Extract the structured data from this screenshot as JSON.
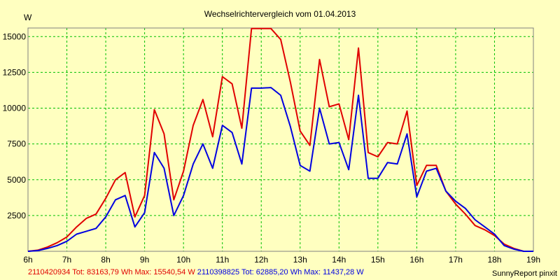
{
  "chart_data": {
    "type": "line",
    "title": "Wechselrichtervergleich vom 01.04.2013",
    "ylabel": "W",
    "xlim": [
      6,
      19
    ],
    "ylim": [
      0,
      15600
    ],
    "x_ticks": [
      6,
      7,
      8,
      9,
      10,
      11,
      12,
      13,
      14,
      15,
      16,
      17,
      18,
      19
    ],
    "x_tick_labels": [
      "6h",
      "7h",
      "8h",
      "9h",
      "10h",
      "11h",
      "12h",
      "13h",
      "14h",
      "15h",
      "16h",
      "17h",
      "18h",
      "19h"
    ],
    "y_ticks": [
      2500,
      5000,
      7500,
      10000,
      12500,
      15000
    ],
    "y_tick_labels": [
      "2500",
      "5000",
      "7500",
      "10000",
      "12500",
      "15000"
    ],
    "grid": true,
    "legend_position": "bottom",
    "x": [
      6.0,
      6.25,
      6.5,
      6.75,
      7.0,
      7.25,
      7.5,
      7.75,
      8.0,
      8.25,
      8.5,
      8.75,
      9.0,
      9.25,
      9.5,
      9.75,
      10.0,
      10.25,
      10.5,
      10.75,
      11.0,
      11.25,
      11.5,
      11.75,
      12.0,
      12.25,
      12.5,
      12.75,
      13.0,
      13.25,
      13.5,
      13.75,
      14.0,
      14.25,
      14.5,
      14.75,
      15.0,
      15.25,
      15.5,
      15.75,
      16.0,
      16.25,
      16.5,
      16.75,
      17.0,
      17.25,
      17.5,
      17.75,
      18.0,
      18.25,
      18.5,
      18.75,
      19.0
    ],
    "series": [
      {
        "name": "2110420934",
        "color": "#e00000",
        "values": [
          0,
          80,
          300,
          600,
          1000,
          1700,
          2300,
          2600,
          3700,
          5000,
          5500,
          2400,
          3900,
          9900,
          8200,
          3600,
          5600,
          8800,
          10600,
          8000,
          12200,
          11700,
          8600,
          15560,
          15560,
          15560,
          14800,
          11800,
          8400,
          7400,
          13400,
          10100,
          10300,
          7800,
          14200,
          6900,
          6600,
          7600,
          7500,
          9800,
          4600,
          6000,
          6000,
          4200,
          3300,
          2600,
          1800,
          1500,
          1100,
          500,
          200,
          0,
          0
        ]
      },
      {
        "name": "2110398825",
        "color": "#0000e0",
        "values": [
          0,
          50,
          200,
          400,
          700,
          1200,
          1400,
          1600,
          2400,
          3600,
          3900,
          1700,
          2700,
          6900,
          5800,
          2500,
          3900,
          6100,
          7500,
          5800,
          8800,
          8300,
          6100,
          11400,
          11400,
          11437,
          10900,
          8700,
          6000,
          5600,
          10000,
          7500,
          7600,
          5700,
          10900,
          5100,
          5100,
          6200,
          6100,
          8200,
          3800,
          5600,
          5800,
          4200,
          3500,
          3000,
          2200,
          1700,
          1200,
          400,
          150,
          0,
          0
        ]
      }
    ]
  },
  "legend": {
    "series1": "2110420934 Tot: 83163,79 Wh Max: 15540,54 W",
    "series2": "2110398825 Tot: 62885,20 Wh Max: 11437,28 W"
  },
  "credit": "SunnyReport pinxit",
  "colors": {
    "background": "#ffffc0",
    "grid": "#00c000",
    "series1": "#e00000",
    "series2": "#0000e0"
  }
}
